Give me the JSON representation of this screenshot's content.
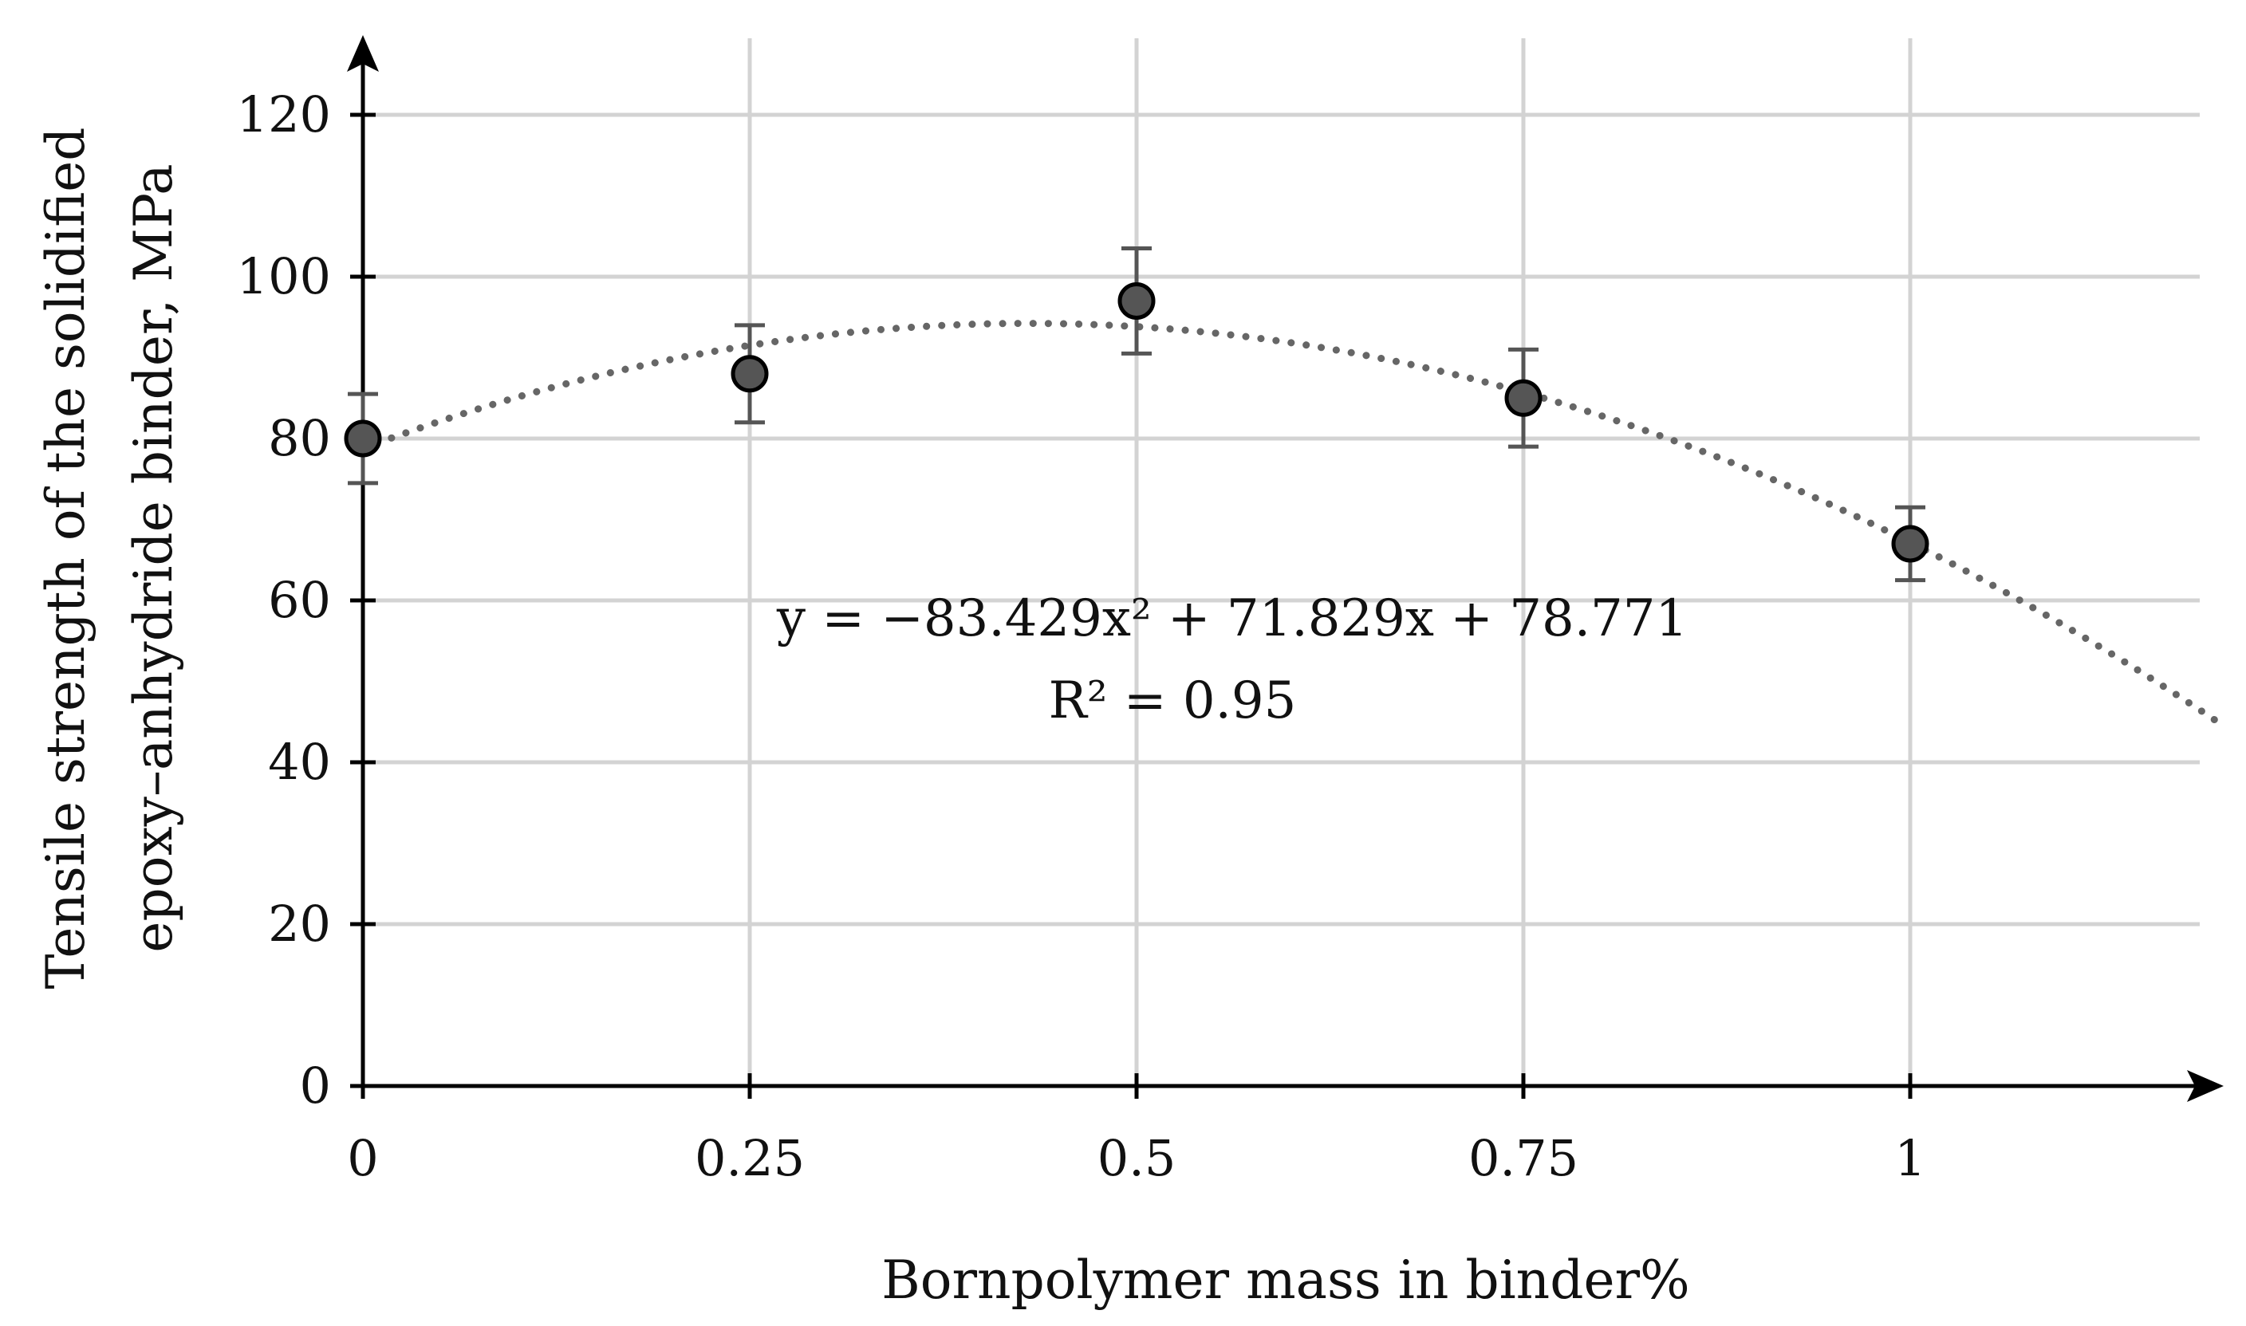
{
  "chart_data": {
    "type": "scatter",
    "xlabel": "Bornpolymer mass in binder%",
    "ylabel_lines": [
      "Tensile strength of the solidified",
      "epoxy–anhydride binder, MPa"
    ],
    "xlim": [
      0,
      1.2
    ],
    "ylim": [
      0,
      120
    ],
    "x_ticks": [
      0,
      0.25,
      0.5,
      0.75,
      1
    ],
    "x_tick_labels": [
      "0",
      "0.25",
      "0.5",
      "0.75",
      "1"
    ],
    "y_ticks": [
      0,
      20,
      40,
      60,
      80,
      100,
      120
    ],
    "y_tick_labels": [
      "0",
      "20",
      "40",
      "60",
      "80",
      "100",
      "120"
    ],
    "grid": true,
    "series": [
      {
        "x": [
          0,
          0.25,
          0.5,
          0.75,
          1
        ],
        "y": [
          80,
          88,
          97,
          85,
          67
        ],
        "error_low": [
          74.5,
          82,
          90.5,
          79,
          62.5
        ],
        "error_high": [
          85.5,
          94,
          103.5,
          91,
          71.5
        ],
        "marker_color": "#555555"
      }
    ],
    "trendline": {
      "type": "polynomial",
      "coefficients": [
        -83.429,
        71.829,
        78.771
      ],
      "x_range": [
        0,
        1.2
      ],
      "style": "dotted",
      "color": "#666666"
    },
    "annotations": {
      "equation": "y = −83.429x² + 71.829x + 78.771",
      "r_squared": "R² = 0.95"
    }
  }
}
